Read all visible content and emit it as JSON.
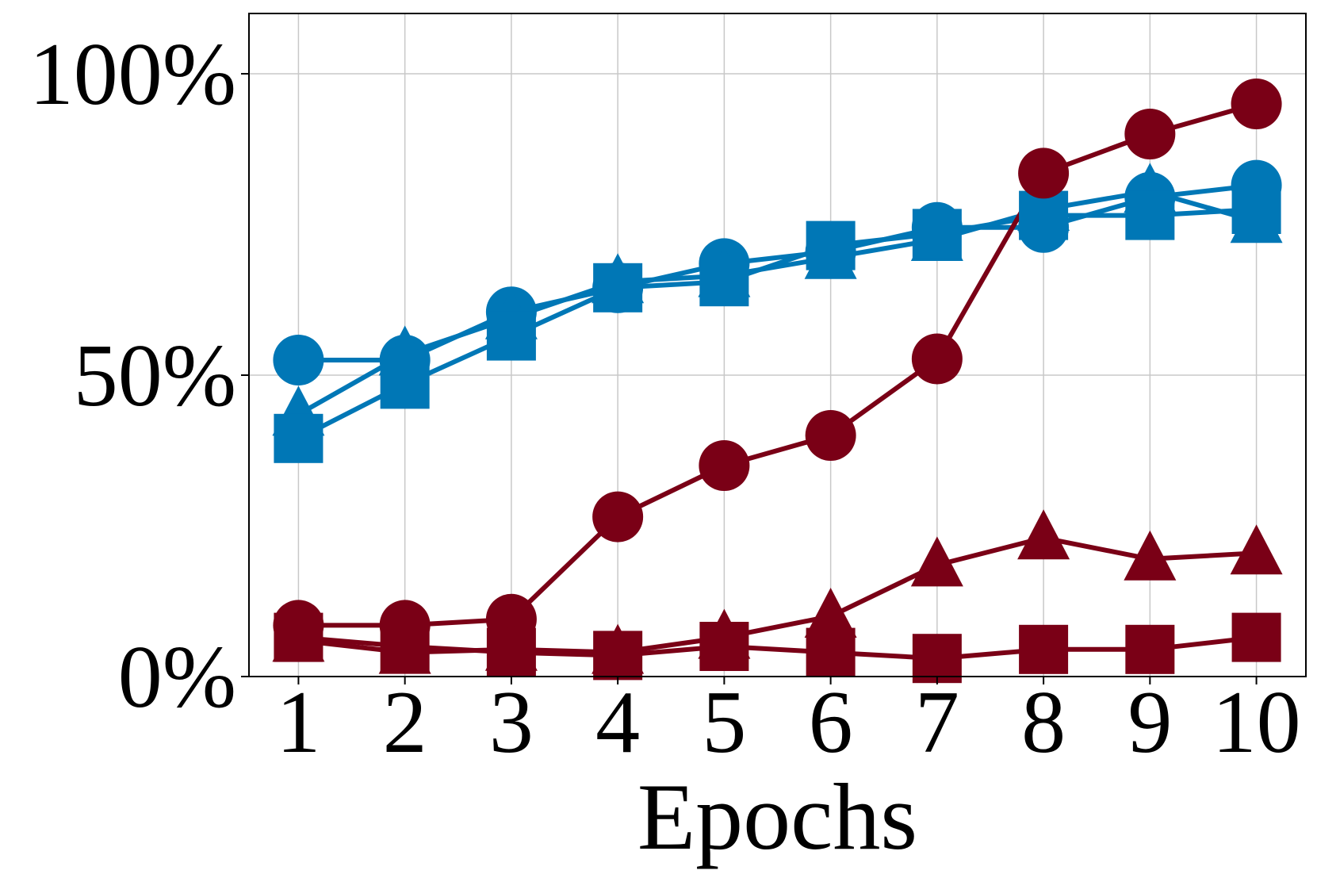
{
  "chart_data": {
    "type": "line",
    "title": "",
    "xlabel": "Epochs",
    "ylabel": "",
    "x": [
      1,
      2,
      3,
      4,
      5,
      6,
      7,
      8,
      9,
      10
    ],
    "xtick_labels": [
      "1",
      "2",
      "3",
      "4",
      "5",
      "6",
      "7",
      "8",
      "9",
      "10"
    ],
    "ylim": [
      0,
      110
    ],
    "yticks": [
      0,
      50,
      100
    ],
    "ytick_labels": [
      "0%",
      "50%",
      "100%"
    ],
    "grid": true,
    "legend": "none",
    "colors": {
      "blue": "#0077b6",
      "red": "#7a0016",
      "grid": "#c8c8c8",
      "axis": "#000000"
    },
    "series": [
      {
        "color": "#0077b6",
        "marker": "circle",
        "values": [
          52.5,
          52.5,
          60.5,
          64.5,
          68.5,
          70.5,
          74.5,
          74.5,
          79.5,
          81.5
        ]
      },
      {
        "color": "#0077b6",
        "marker": "triangle",
        "values": [
          43.5,
          53.5,
          59.5,
          65.5,
          66.5,
          69.5,
          72.5,
          77.5,
          80.5,
          75.5
        ]
      },
      {
        "color": "#0077b6",
        "marker": "square",
        "values": [
          39.5,
          48.5,
          56.5,
          64.5,
          65.5,
          71.5,
          73.5,
          76.5,
          76.5,
          77.5
        ]
      },
      {
        "color": "#7a0016",
        "marker": "circle",
        "values": [
          8.5,
          8.5,
          9.5,
          26.5,
          35.0,
          40.0,
          52.7,
          83.5,
          90.0,
          95.0
        ]
      },
      {
        "color": "#7a0016",
        "marker": "triangle",
        "values": [
          6.0,
          4.0,
          4.5,
          4.0,
          6.5,
          10.0,
          18.5,
          23.0,
          19.5,
          20.5
        ]
      },
      {
        "color": "#7a0016",
        "marker": "square",
        "values": [
          6.5,
          5.0,
          4.0,
          3.5,
          5.0,
          4.0,
          3.0,
          4.5,
          4.5,
          6.5
        ]
      }
    ]
  }
}
